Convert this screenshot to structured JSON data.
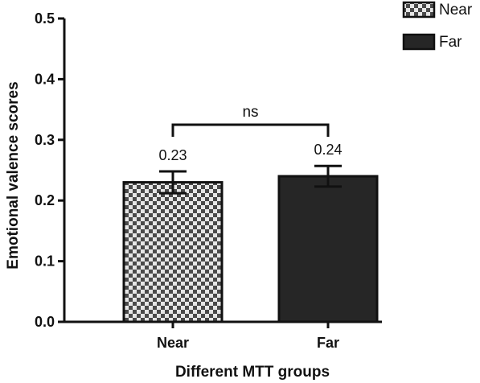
{
  "chart_data": {
    "type": "bar",
    "categories": [
      "Near",
      "Far"
    ],
    "values": [
      0.23,
      0.24
    ],
    "error": [
      0.018,
      0.017
    ],
    "data_labels": [
      "0.23",
      "0.24"
    ],
    "xlabel": "Different MTT groups",
    "ylabel": "Emotional valence scores",
    "ylim": [
      0,
      0.5
    ],
    "yticks": [
      "0.0",
      "0.1",
      "0.2",
      "0.3",
      "0.4",
      "0.5"
    ],
    "legend": [
      {
        "name": "Near",
        "pattern": "checkerboard"
      },
      {
        "name": "Far",
        "pattern": "solid"
      }
    ],
    "legend_position": "top-right",
    "significance": {
      "label": "ns",
      "between": [
        "Near",
        "Far"
      ]
    },
    "grid": false,
    "colors": {
      "far_fill": "#262626",
      "check_dark": "#4a4a4a",
      "check_light": "#e6e6e6",
      "axis": "#111111"
    }
  }
}
